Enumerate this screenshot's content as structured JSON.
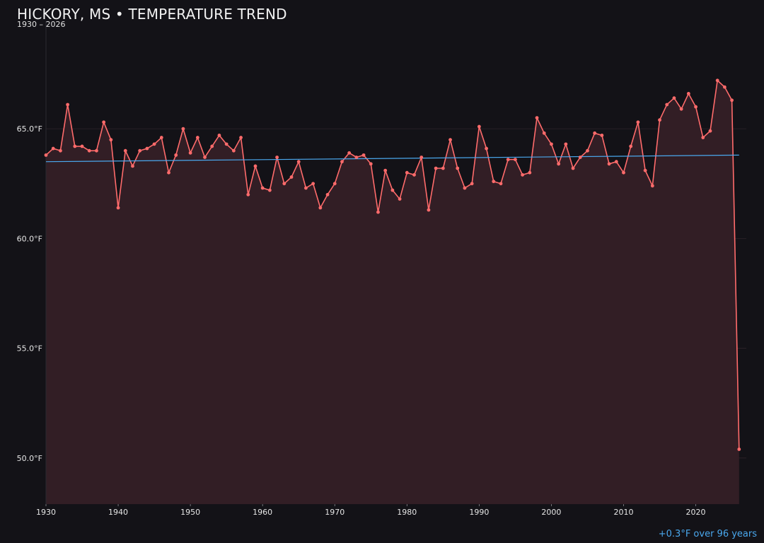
{
  "chart_data": {
    "type": "line",
    "title": "HICKORY, MS • TEMPERATURE TREND",
    "subtitle": "1930 – 2026",
    "trend_note": "+0.3°F over 96 years",
    "x_ticks": [
      1930,
      1940,
      1950,
      1960,
      1970,
      1980,
      1990,
      2000,
      2010,
      2020
    ],
    "y_ticks": [
      50.0,
      55.0,
      60.0,
      65.0
    ],
    "y_tick_suffix": "°F",
    "xlim": [
      1930,
      2027
    ],
    "ylim": [
      47.9,
      69.9
    ],
    "grid": "horizontal",
    "legend": "none",
    "colors": {
      "line": "#ff6b6b",
      "fill": "#321e25",
      "trend": "#4aa8ee",
      "background": "#131217",
      "grid": "#2a2228"
    },
    "series": [
      {
        "x": [
          1930,
          1931,
          1932,
          1933,
          1934,
          1935,
          1936,
          1937,
          1938,
          1939,
          1940,
          1941,
          1942,
          1943,
          1944,
          1945,
          1946,
          1947,
          1948,
          1949,
          1950,
          1951,
          1952,
          1953,
          1954,
          1955,
          1956,
          1957,
          1958,
          1959,
          1960,
          1961,
          1962,
          1963,
          1964,
          1965,
          1966,
          1967,
          1968,
          1969,
          1970,
          1971,
          1972,
          1973,
          1974,
          1975,
          1976,
          1977,
          1978,
          1979,
          1980,
          1981,
          1982,
          1983,
          1984,
          1985,
          1986,
          1987,
          1988,
          1989,
          1990,
          1991,
          1992,
          1993,
          1994,
          1995,
          1996,
          1997,
          1998,
          1999,
          2000,
          2001,
          2002,
          2003,
          2004,
          2005,
          2006,
          2007,
          2008,
          2009,
          2010,
          2011,
          2012,
          2013,
          2014,
          2015,
          2016,
          2017,
          2018,
          2019,
          2020,
          2021,
          2022,
          2023,
          2024,
          2025,
          2026
        ],
        "values": [
          63.8,
          64.1,
          64.0,
          66.1,
          64.2,
          64.2,
          64.0,
          64.0,
          65.3,
          64.5,
          61.4,
          64.0,
          63.3,
          64.0,
          64.1,
          64.3,
          64.6,
          63.0,
          63.8,
          65.0,
          63.9,
          64.6,
          63.7,
          64.2,
          64.7,
          64.3,
          64.0,
          64.6,
          62.0,
          63.3,
          62.3,
          62.2,
          63.7,
          62.5,
          62.8,
          63.5,
          62.3,
          62.5,
          61.4,
          62.0,
          62.5,
          63.5,
          63.9,
          63.7,
          63.8,
          63.4,
          61.2,
          63.1,
          62.2,
          61.8,
          63.0,
          62.9,
          63.7,
          61.3,
          63.2,
          63.2,
          64.5,
          63.2,
          62.3,
          62.5,
          65.1,
          64.1,
          62.6,
          62.5,
          63.6,
          63.6,
          62.9,
          63.0,
          65.5,
          64.8,
          64.3,
          63.4,
          64.3,
          63.2,
          63.7,
          64.0,
          64.8,
          64.7,
          63.4,
          63.5,
          63.0,
          64.2,
          65.3,
          63.1,
          62.4,
          65.4,
          66.1,
          66.4,
          65.9,
          66.6,
          66.0,
          64.6,
          64.9,
          67.2,
          66.9,
          66.3,
          50.4
        ]
      }
    ],
    "trend_line": {
      "x": [
        1930,
        2026
      ],
      "values": [
        63.5,
        63.8
      ]
    }
  }
}
